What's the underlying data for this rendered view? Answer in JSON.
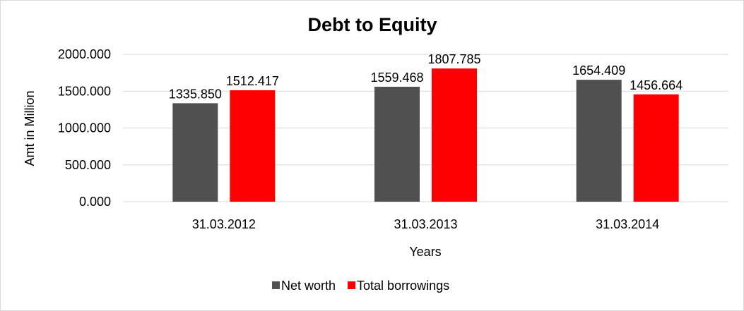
{
  "chart_data": {
    "type": "bar",
    "title": "Debt to Equity",
    "xlabel": "Years",
    "ylabel": "Amt in Million",
    "categories": [
      "31.03.2012",
      "31.03.2013",
      "31.03.2014"
    ],
    "series": [
      {
        "name": "Net worth",
        "color": "#505050",
        "values": [
          1335.85,
          1559.468,
          1654.409
        ],
        "labels": [
          "1335.850",
          "1559.468",
          "1654.409"
        ]
      },
      {
        "name": "Total borrowings",
        "color": "#ff0000",
        "values": [
          1512.417,
          1807.785,
          1456.664
        ],
        "labels": [
          "1512.417",
          "1807.785",
          "1456.664"
        ]
      }
    ],
    "ylim": [
      0,
      2000
    ],
    "yticks": [
      "0.000",
      "500.000",
      "1000.000",
      "1500.000",
      "2000.000"
    ],
    "grid": true,
    "legend_position": "bottom"
  }
}
